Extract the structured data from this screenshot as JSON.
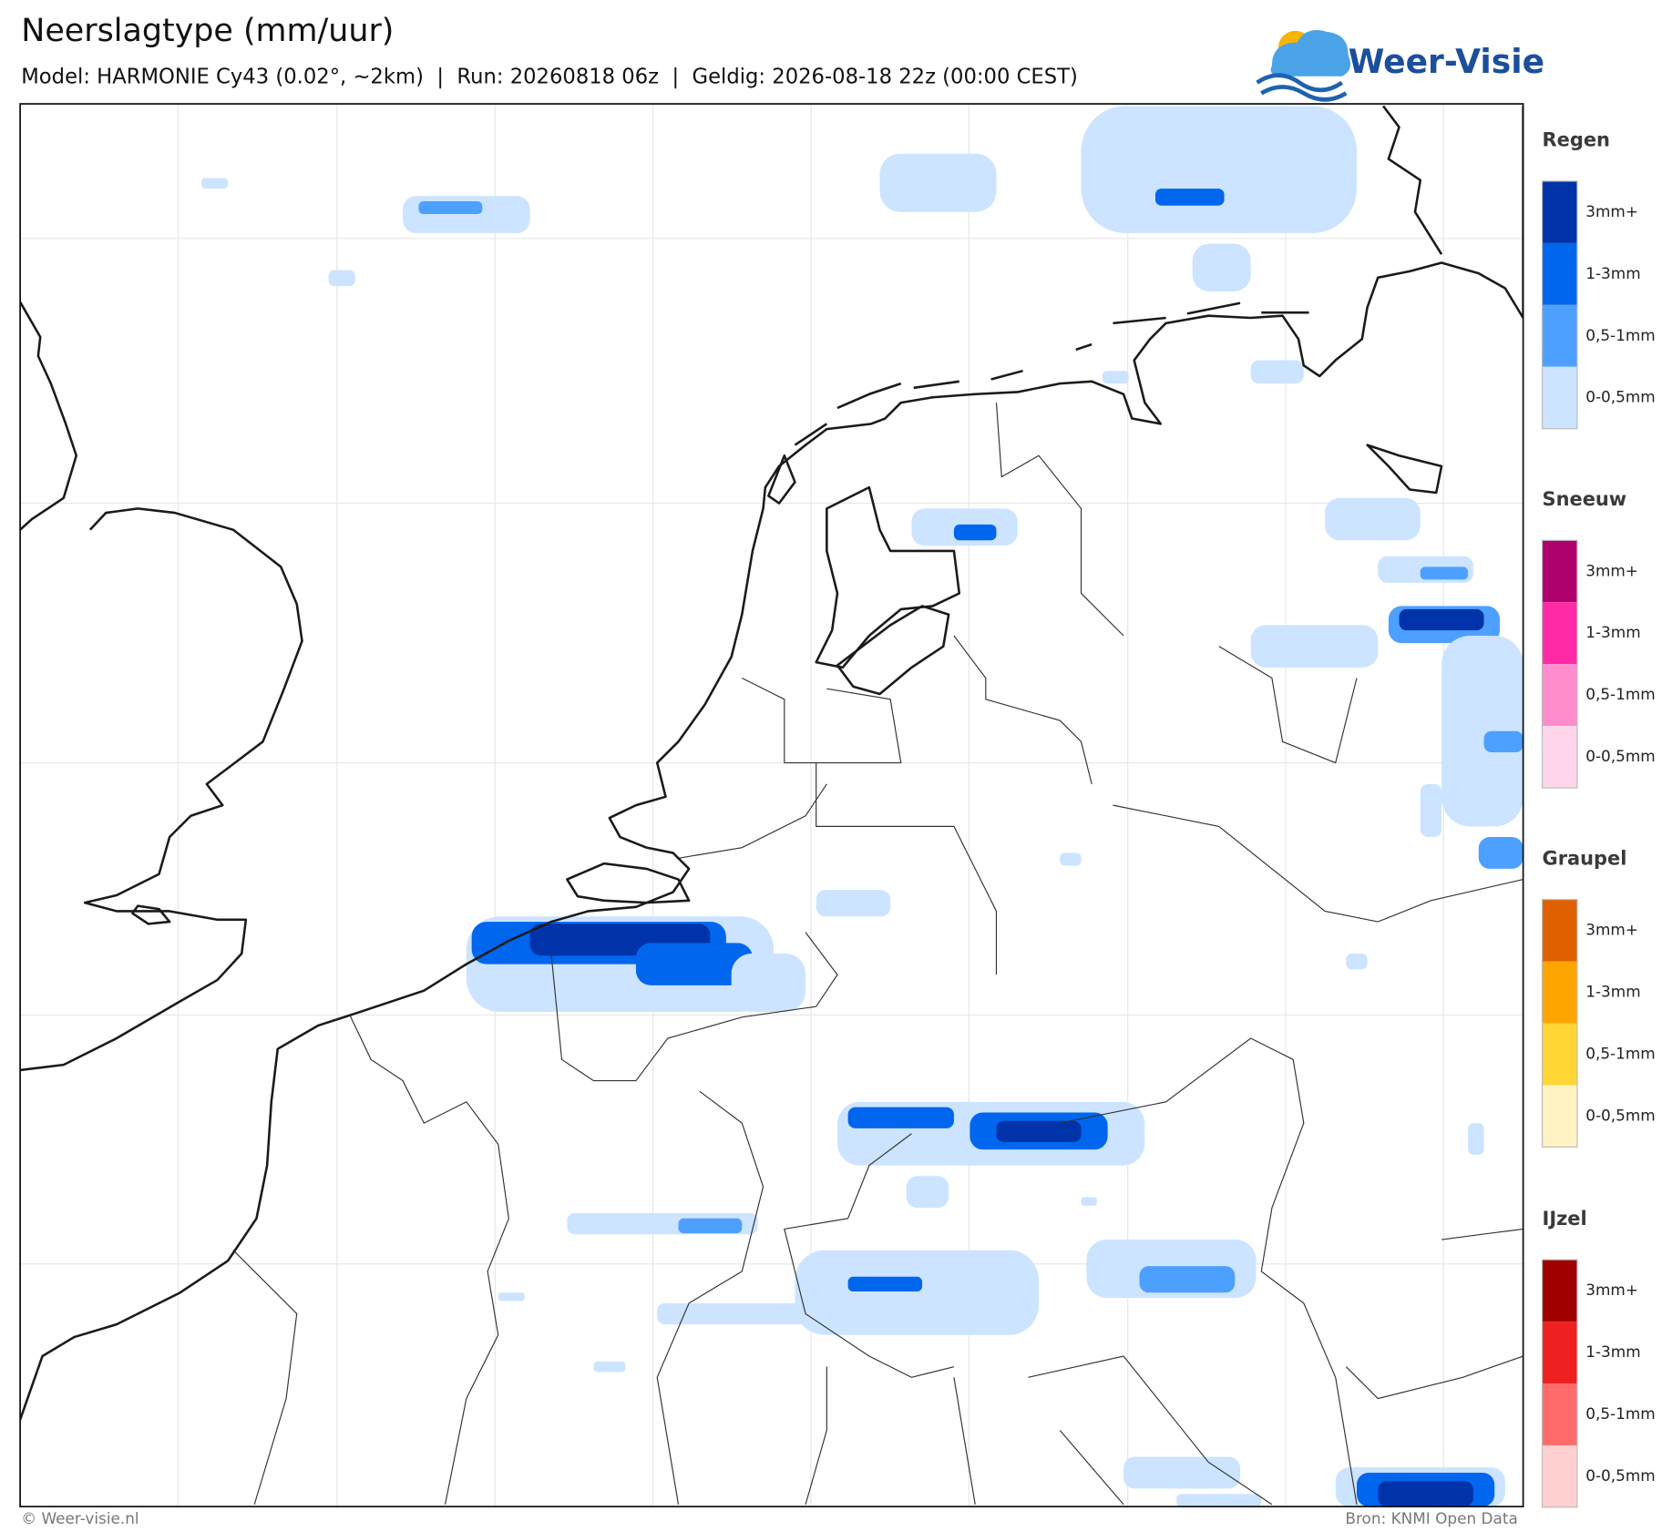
{
  "header": {
    "title": "Neerslagtype (mm/uur)",
    "subtitle": "Model: HARMONIE Cy43 (0.02°, ~2km)  |  Run: 20260818 06z  |  Geldig: 2026-08-18 22z (00:00 CEST)",
    "logo": "Weer-Visie"
  },
  "legend": [
    {
      "title": "Regen",
      "items": [
        {
          "label": "3mm+",
          "color": "#0033aa"
        },
        {
          "label": "1-3mm",
          "color": "#0066ee"
        },
        {
          "label": "0,5-1mm",
          "color": "#4da0ff"
        },
        {
          "label": "0-0,5mm",
          "color": "#cce4ff"
        }
      ]
    },
    {
      "title": "Sneeuw",
      "items": [
        {
          "label": "3mm+",
          "color": "#b0006e"
        },
        {
          "label": "1-3mm",
          "color": "#ff2aa5"
        },
        {
          "label": "0,5-1mm",
          "color": "#ff8ccc"
        },
        {
          "label": "0-0,5mm",
          "color": "#ffd6ec"
        }
      ]
    },
    {
      "title": "Graupel",
      "items": [
        {
          "label": "3mm+",
          "color": "#e06000"
        },
        {
          "label": "1-3mm",
          "color": "#ffa500"
        },
        {
          "label": "0,5-1mm",
          "color": "#ffd633"
        },
        {
          "label": "0-0,5mm",
          "color": "#fff3c4"
        }
      ]
    },
    {
      "title": "IJzel",
      "items": [
        {
          "label": "3mm+",
          "color": "#a00000"
        },
        {
          "label": "1-3mm",
          "color": "#ee2020"
        },
        {
          "label": "0,5-1mm",
          "color": "#ff6b6b"
        },
        {
          "label": "0-0,5mm",
          "color": "#ffd0d0"
        }
      ]
    }
  ],
  "footer": {
    "left": "© Weer-visie.nl",
    "right": "Bron: KNMI Open Data"
  }
}
